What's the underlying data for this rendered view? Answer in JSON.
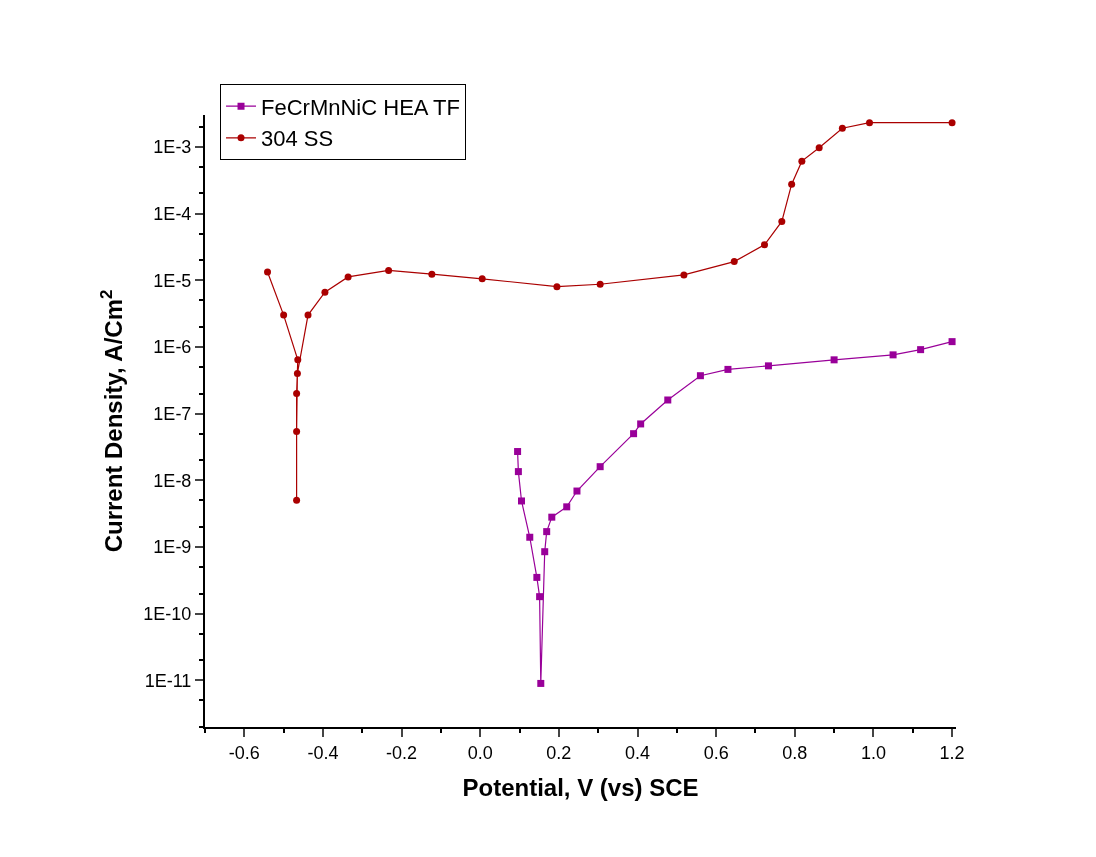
{
  "chart_data": {
    "type": "line",
    "xlabel": "Potential, V (vs) SCE",
    "ylabel": "Current Density, A/Cm$^{2}$",
    "log": "y",
    "legend": "top left",
    "xlim": [
      -0.7,
      1.21
    ],
    "xticks": [
      {
        "value": -0.6,
        "label": "-0.6"
      },
      {
        "value": -0.4,
        "label": "-0.4"
      },
      {
        "value": -0.2,
        "label": "-0.2"
      },
      {
        "value": 0,
        "label": "0.0"
      },
      {
        "value": 0.2,
        "label": "0.2"
      },
      {
        "value": 0.4,
        "label": "0.4"
      },
      {
        "value": 0.6,
        "label": "0.6"
      },
      {
        "value": 0.8,
        "label": "0.8"
      },
      {
        "value": 1.0,
        "label": "1.0"
      },
      {
        "value": 1.2,
        "label": "1.2"
      }
    ],
    "ylim": [
      2e-12,
      0.003
    ],
    "yticks": [
      {
        "value": 1e-11,
        "label": "1E-11"
      },
      {
        "value": 1e-10,
        "label": "1E-10"
      },
      {
        "value": 1e-09,
        "label": "1E-9"
      },
      {
        "value": 1e-08,
        "label": "1E-8"
      },
      {
        "value": 1e-07,
        "label": "1E-7"
      },
      {
        "value": 1e-06,
        "label": "1E-6"
      },
      {
        "value": 1e-05,
        "label": "1E-5"
      },
      {
        "value": 0.0001,
        "label": "1E-4"
      },
      {
        "value": 0.001,
        "label": "1E-3"
      }
    ],
    "series": [
      {
        "name": "FeCrMnNiC HEA TF",
        "color": "#990099",
        "marker": "square",
        "x": [
          0.095,
          0.097,
          0.105,
          0.126,
          0.144,
          0.151,
          0.154,
          0.164,
          0.169,
          0.182,
          0.22,
          0.246,
          0.305,
          0.39,
          0.408,
          0.477,
          0.56,
          0.63,
          0.733,
          0.9,
          1.05,
          1.12,
          1.2
        ],
        "values": [
          2.7e-08,
          1.35e-08,
          4.9e-09,
          1.4e-09,
          3.5e-10,
          1.8e-10,
          9e-12,
          8.5e-10,
          1.7e-09,
          2.8e-09,
          4e-09,
          6.9e-09,
          1.6e-08,
          5e-08,
          7e-08,
          1.6e-07,
          3.7e-07,
          4.6e-07,
          5.2e-07,
          6.4e-07,
          7.6e-07,
          9.1e-07,
          1.2e-06
        ]
      },
      {
        "name": "304 SS",
        "color": "#aa0000",
        "marker": "circle",
        "x": [
          -0.541,
          -0.5,
          -0.464,
          -0.467,
          -0.467,
          -0.467,
          -0.465,
          -0.438,
          -0.395,
          -0.336,
          -0.233,
          -0.123,
          0.005,
          0.195,
          0.305,
          0.518,
          0.646,
          0.723,
          0.767,
          0.792,
          0.818,
          0.862,
          0.921,
          0.99,
          1.2
        ],
        "values": [
          1.33e-05,
          3e-06,
          6.4e-07,
          2e-07,
          5e-09,
          5.4e-08,
          4e-07,
          3e-06,
          6.6e-06,
          1.12e-05,
          1.4e-05,
          1.23e-05,
          1.05e-05,
          8e-06,
          8.7e-06,
          1.2e-05,
          1.9e-05,
          3.4e-05,
          7.6e-05,
          0.000275,
          0.00061,
          0.00097,
          0.0019,
          0.0023,
          0.0023
        ]
      }
    ]
  }
}
